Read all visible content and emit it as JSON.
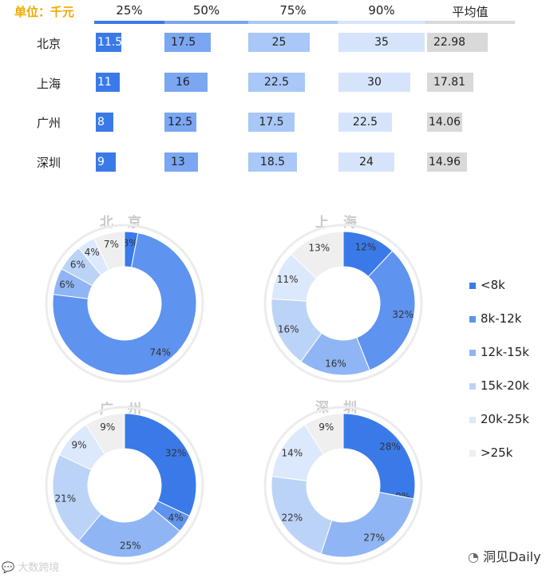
{
  "table": {
    "unit_label": "单位：千元",
    "headers": [
      "25%",
      "50%",
      "75%",
      "90%",
      "平均值"
    ],
    "header_colors": [
      "#3a7ae8",
      "#7aa6f2",
      "#a9c7f7",
      "#d6e4fb",
      "#d9d9d9"
    ],
    "cities": [
      "北京",
      "上海",
      "广州",
      "深圳"
    ],
    "values": [
      [
        "11.5",
        "17.5",
        "25",
        "35",
        "22.98"
      ],
      [
        "11",
        "16",
        "22.5",
        "30",
        "17.81"
      ],
      [
        "8",
        "12.5",
        "17.5",
        "22.5",
        "14.06"
      ],
      [
        "9",
        "13",
        "18.5",
        "24",
        "14.96"
      ]
    ]
  },
  "chart_data": [
    {
      "type": "pie",
      "title": "北京",
      "categories": [
        "<8k",
        "8k-12k",
        "12k-15k",
        "15k-20k",
        "20k-25k",
        ">25k"
      ],
      "values": [
        3,
        74,
        6,
        6,
        4,
        7
      ]
    },
    {
      "type": "pie",
      "title": "上海",
      "categories": [
        "<8k",
        "8k-12k",
        "12k-15k",
        "15k-20k",
        "20k-25k",
        ">25k"
      ],
      "values": [
        12,
        32,
        16,
        16,
        11,
        13
      ]
    },
    {
      "type": "pie",
      "title": "广州",
      "categories": [
        "<8k",
        "8k-12k",
        "12k-15k",
        "15k-20k",
        "20k-25k",
        ">25k"
      ],
      "values": [
        32,
        4,
        25,
        21,
        9,
        9
      ]
    },
    {
      "type": "pie",
      "title": "深圳",
      "categories": [
        "<8k",
        "8k-12k",
        "12k-15k",
        "15k-20k",
        "20k-25k",
        ">25k"
      ],
      "values": [
        28,
        0,
        27,
        22,
        14,
        9
      ]
    }
  ],
  "legend": {
    "items": [
      "<8k",
      "8k-12k",
      "12k-15k",
      "15k-20k",
      "20k-25k",
      ">25k"
    ],
    "colors": [
      "#3a7ae8",
      "#5e93ef",
      "#8fb5f4",
      "#bcd3f8",
      "#dce8fb",
      "#efefef"
    ]
  },
  "footer": {
    "left_text": "大数跨境",
    "right_text": "洞见Daily"
  }
}
